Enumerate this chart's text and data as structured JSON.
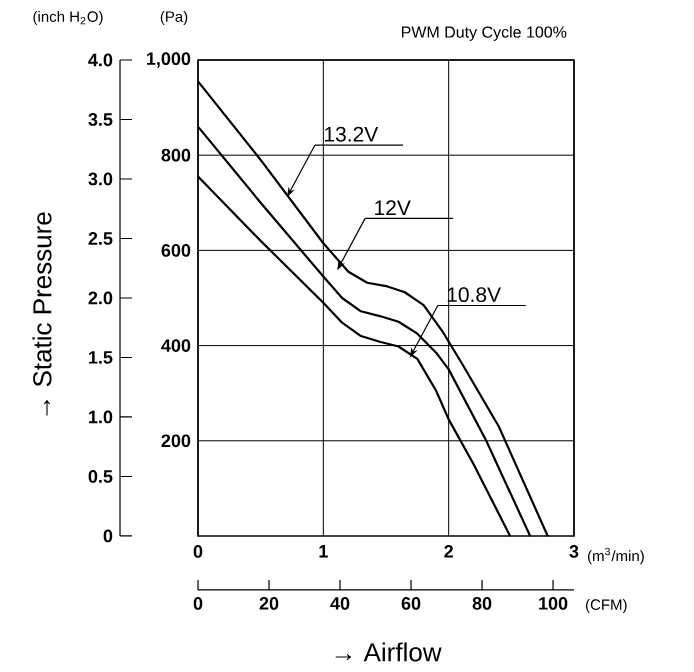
{
  "chart_data": {
    "type": "line",
    "title": "PWM Duty Cycle 100%",
    "xlabel": "(m$^{3}$/min)",
    "x2label": "(CFM)",
    "ylabel": "(Pa)",
    "y2label": "(inch H$_{2}$O)",
    "xlim": [
      0,
      3
    ],
    "xticks": [
      0,
      1,
      2,
      3
    ],
    "x2lim": [
      0,
      105.9
    ],
    "x2ticks": [
      0,
      20,
      40,
      60,
      80,
      100
    ],
    "ylim": [
      0,
      1000
    ],
    "yticks": [
      {
        "value": 200,
        "label": "200"
      },
      {
        "value": 400,
        "label": "400"
      },
      {
        "value": 600,
        "label": "600"
      },
      {
        "value": 800,
        "label": "800"
      },
      {
        "value": 1000,
        "label": "1,000"
      }
    ],
    "y2lim": [
      0,
      4.0
    ],
    "y2ticks": [
      0,
      0.5,
      {
        "value": 1,
        "label": "1.0"
      },
      1.5,
      {
        "value": 2,
        "label": "2.0"
      },
      2.5,
      {
        "value": 3,
        "label": "3.0"
      },
      3.5,
      {
        "value": 4,
        "label": "4.0"
      }
    ],
    "grid": true,
    "series": [
      {
        "color": "#000000",
        "x": [
          0,
          0.5,
          1.0,
          1.2,
          1.35,
          1.5,
          1.65,
          1.8,
          1.95,
          2.1,
          2.4,
          2.79
        ],
        "values": [
          955,
          790,
          615,
          555,
          532,
          525,
          512,
          485,
          430,
          365,
          230,
          0
        ]
      },
      {
        "color": "#000000",
        "x": [
          0,
          0.5,
          1.0,
          1.15,
          1.3,
          1.45,
          1.6,
          1.75,
          1.9,
          2.0,
          2.3,
          2.65
        ],
        "values": [
          860,
          700,
          545,
          500,
          472,
          462,
          450,
          425,
          385,
          350,
          200,
          0
        ]
      },
      {
        "color": "#000000",
        "x": [
          0,
          0.5,
          1.0,
          1.15,
          1.3,
          1.45,
          1.6,
          1.75,
          1.9,
          2.0,
          2.2,
          2.49
        ],
        "values": [
          755,
          620,
          490,
          448,
          420,
          408,
          398,
          372,
          305,
          245,
          150,
          0
        ]
      }
    ],
    "annotations": [
      {
        "text": "13.2V",
        "x": 0.71,
        "y": 712
      },
      {
        "text": "12V",
        "x": 1.11,
        "y": 558
      },
      {
        "text": "10.8V",
        "x": 1.69,
        "y": 375
      },
      "→ Airflow",
      "→ Static Pressure"
    ]
  }
}
